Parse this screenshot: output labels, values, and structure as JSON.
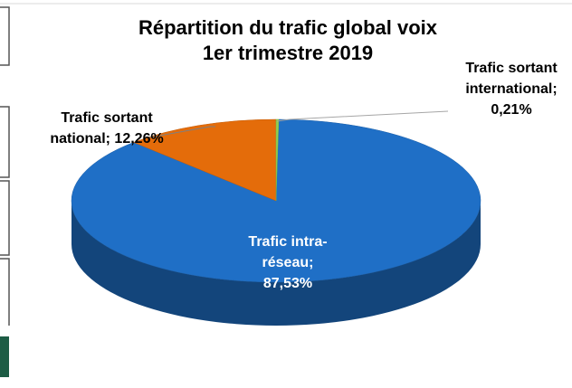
{
  "chart_data": {
    "type": "pie",
    "title": [
      "Répartition du trafic global voix",
      "1er trimestre 2019"
    ],
    "series": [
      {
        "name": null,
        "values": [
          87.53,
          12.26,
          0.21
        ],
        "value_labels": [
          "Trafic intra-réseau; 87,53%",
          "Trafic sortant national; 12,26%",
          "Trafic sortant international; 0,21%"
        ],
        "colors": [
          "#1f6fc6",
          "#e46c0a",
          "#92d050"
        ]
      }
    ]
  }
}
